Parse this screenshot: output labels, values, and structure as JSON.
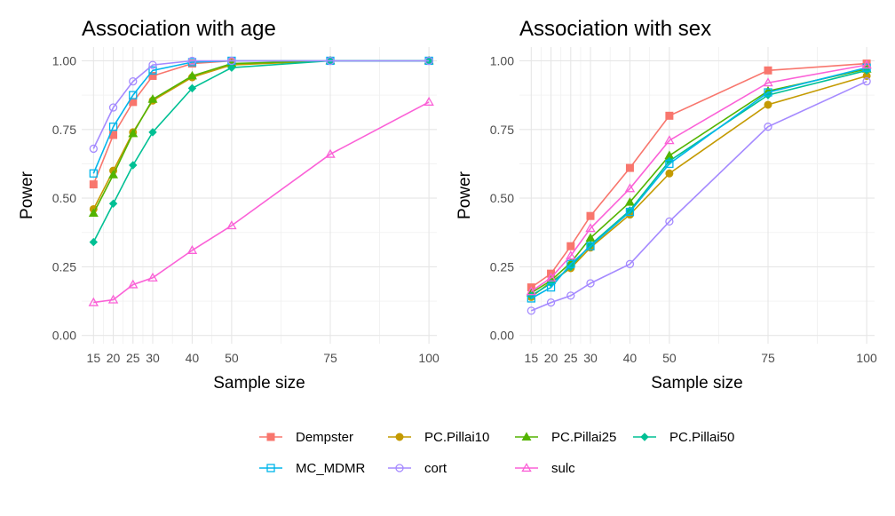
{
  "chart_data": [
    {
      "type": "line",
      "title": "Association with age",
      "xlabel": "Sample size",
      "ylabel": "Power",
      "x": [
        15,
        20,
        25,
        30,
        40,
        50,
        75,
        100
      ],
      "xticks": [
        15,
        20,
        25,
        30,
        40,
        50,
        75,
        100
      ],
      "xlim": [
        12,
        102
      ],
      "ylim": [
        -0.03,
        1.05
      ],
      "yticks": [
        "0.00",
        "0.25",
        "0.50",
        "0.75",
        "1.00"
      ],
      "grid": true,
      "series": [
        {
          "name": "Dempster",
          "values": [
            0.55,
            0.73,
            0.85,
            0.945,
            0.99,
            1.0,
            1.0,
            1.0
          ]
        },
        {
          "name": "PC.Pillai10",
          "values": [
            0.46,
            0.6,
            0.74,
            0.855,
            0.94,
            0.985,
            1.0,
            1.0
          ]
        },
        {
          "name": "PC.Pillai25",
          "values": [
            0.445,
            0.585,
            0.735,
            0.86,
            0.945,
            0.99,
            1.0,
            1.0
          ]
        },
        {
          "name": "PC.Pillai50",
          "values": [
            0.34,
            0.48,
            0.62,
            0.74,
            0.9,
            0.975,
            1.0,
            1.0
          ]
        },
        {
          "name": "MC_MDMR",
          "values": [
            0.59,
            0.76,
            0.875,
            0.965,
            0.995,
            1.0,
            1.0,
            1.0
          ]
        },
        {
          "name": "cort",
          "values": [
            0.68,
            0.83,
            0.925,
            0.985,
            1.0,
            1.0,
            1.0,
            1.0
          ]
        },
        {
          "name": "sulc",
          "values": [
            0.12,
            0.13,
            0.185,
            0.21,
            0.31,
            0.4,
            0.66,
            0.85
          ]
        }
      ]
    },
    {
      "type": "line",
      "title": "Association with sex",
      "xlabel": "Sample size",
      "ylabel": "Power",
      "x": [
        15,
        20,
        25,
        30,
        40,
        50,
        75,
        100
      ],
      "xticks": [
        15,
        20,
        25,
        30,
        40,
        50,
        75,
        100
      ],
      "xlim": [
        12,
        102
      ],
      "ylim": [
        -0.03,
        1.05
      ],
      "yticks": [
        "0.00",
        "0.25",
        "0.50",
        "0.75",
        "1.00"
      ],
      "grid": true,
      "series": [
        {
          "name": "Dempster",
          "values": [
            0.175,
            0.225,
            0.325,
            0.435,
            0.61,
            0.8,
            0.965,
            0.99
          ]
        },
        {
          "name": "PC.Pillai10",
          "values": [
            0.14,
            0.195,
            0.245,
            0.32,
            0.44,
            0.59,
            0.84,
            0.945
          ]
        },
        {
          "name": "PC.Pillai25",
          "values": [
            0.155,
            0.2,
            0.265,
            0.355,
            0.485,
            0.655,
            0.89,
            0.97
          ]
        },
        {
          "name": "PC.Pillai50",
          "values": [
            0.145,
            0.19,
            0.25,
            0.33,
            0.455,
            0.635,
            0.875,
            0.965
          ]
        },
        {
          "name": "MC_MDMR",
          "values": [
            0.135,
            0.175,
            0.26,
            0.325,
            0.45,
            0.625,
            0.885,
            0.975
          ]
        },
        {
          "name": "cort",
          "values": [
            0.09,
            0.12,
            0.145,
            0.19,
            0.26,
            0.415,
            0.76,
            0.925
          ]
        },
        {
          "name": "sulc",
          "values": [
            0.16,
            0.21,
            0.29,
            0.39,
            0.535,
            0.71,
            0.92,
            0.985
          ]
        }
      ]
    }
  ],
  "legend": {
    "placement": "bottom",
    "items": [
      {
        "name": "Dempster",
        "color": "#F8766D",
        "shape": "square"
      },
      {
        "name": "PC.Pillai10",
        "color": "#C49A00",
        "shape": "circle"
      },
      {
        "name": "PC.Pillai25",
        "color": "#53B400",
        "shape": "triangle"
      },
      {
        "name": "PC.Pillai50",
        "color": "#00C094",
        "shape": "diamond"
      },
      {
        "name": "MC_MDMR",
        "color": "#00B6EB",
        "shape": "square-open"
      },
      {
        "name": "cort",
        "color": "#A58AFF",
        "shape": "circle-open"
      },
      {
        "name": "sulc",
        "color": "#FB61D7",
        "shape": "triangle-open"
      }
    ]
  }
}
